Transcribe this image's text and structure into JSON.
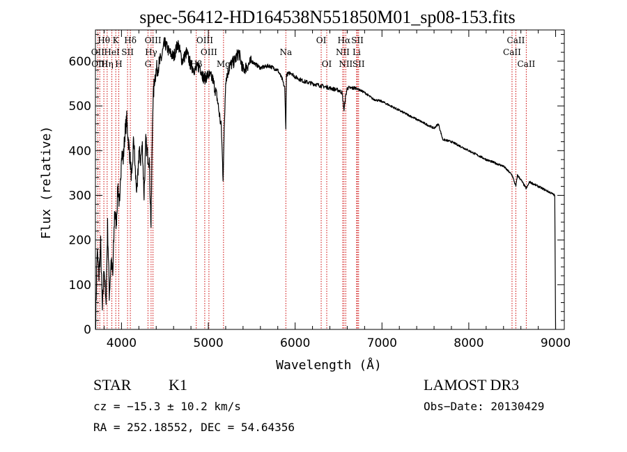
{
  "chart_data": {
    "type": "line",
    "title": "spec-56412-HD164538N551850M01_sp08-153.fits",
    "xlabel": "Wavelength (Å)",
    "ylabel": "Flux (relative)",
    "xlim": [
      3700,
      9100
    ],
    "ylim": [
      0,
      670
    ],
    "x_ticks": [
      4000,
      5000,
      6000,
      7000,
      8000,
      9000
    ],
    "y_ticks": [
      0,
      100,
      200,
      300,
      400,
      500,
      600
    ],
    "series": [
      {
        "name": "flux",
        "x": [
          3700,
          3720,
          3740,
          3760,
          3780,
          3800,
          3820,
          3840,
          3860,
          3880,
          3900,
          3920,
          3940,
          3960,
          3980,
          4000,
          4020,
          4040,
          4060,
          4080,
          4100,
          4120,
          4140,
          4160,
          4180,
          4200,
          4220,
          4240,
          4260,
          4280,
          4300,
          4320,
          4340,
          4360,
          4380,
          4400,
          4450,
          4500,
          4550,
          4600,
          4650,
          4700,
          4750,
          4800,
          4850,
          4900,
          4950,
          5000,
          5050,
          5100,
          5150,
          5170,
          5180,
          5200,
          5250,
          5300,
          5350,
          5400,
          5500,
          5600,
          5700,
          5800,
          5850,
          5880,
          5893,
          5900,
          5950,
          6000,
          6100,
          6200,
          6300,
          6400,
          6500,
          6540,
          6563,
          6580,
          6600,
          6700,
          6800,
          6900,
          7000,
          7200,
          7400,
          7600,
          7650,
          7700,
          7800,
          8000,
          8200,
          8400,
          8500,
          8542,
          8560,
          8600,
          8662,
          8700,
          8800,
          8900,
          8950,
          8990,
          9000
        ],
        "values": [
          0,
          175,
          120,
          190,
          40,
          145,
          50,
          230,
          80,
          150,
          120,
          260,
          240,
          320,
          270,
          400,
          380,
          440,
          470,
          420,
          380,
          330,
          430,
          350,
          300,
          400,
          380,
          410,
          300,
          420,
          390,
          380,
          230,
          500,
          560,
          580,
          600,
          640,
          620,
          610,
          640,
          600,
          620,
          590,
          580,
          590,
          560,
          570,
          560,
          520,
          450,
          340,
          420,
          560,
          590,
          600,
          620,
          580,
          600,
          585,
          590,
          580,
          560,
          540,
          450,
          570,
          575,
          565,
          555,
          550,
          545,
          540,
          535,
          530,
          490,
          520,
          540,
          540,
          530,
          515,
          510,
          490,
          470,
          450,
          460,
          425,
          420,
          400,
          380,
          365,
          345,
          320,
          345,
          335,
          315,
          330,
          320,
          310,
          305,
          300,
          0
        ]
      }
    ],
    "line_labels": [
      {
        "text": "Hθ",
        "x": 3797,
        "row": 1
      },
      {
        "text": "OII",
        "x": 3727,
        "row": 2
      },
      {
        "text": "OIII",
        "x": 3750,
        "row": 3
      },
      {
        "text": "K",
        "x": 3934,
        "row": 1
      },
      {
        "text": "HeI",
        "x": 3889,
        "row": 2
      },
      {
        "text": "Hη",
        "x": 3835,
        "row": 3
      },
      {
        "text": "Hδ",
        "x": 4102,
        "row": 1
      },
      {
        "text": "SII",
        "x": 4070,
        "row": 2
      },
      {
        "text": "H",
        "x": 3969,
        "row": 3
      },
      {
        "text": "OIII",
        "x": 4363,
        "row": 1
      },
      {
        "text": "Hγ",
        "x": 4341,
        "row": 2
      },
      {
        "text": "G",
        "x": 4305,
        "row": 3
      },
      {
        "text": "OIII",
        "x": 4959,
        "row": 1
      },
      {
        "text": "OIII",
        "x": 5007,
        "row": 2
      },
      {
        "text": "Hβ",
        "x": 4861,
        "row": 3
      },
      {
        "text": "Mg",
        "x": 5175,
        "row": 3
      },
      {
        "text": "Na",
        "x": 5893,
        "row": 2
      },
      {
        "text": "OI",
        "x": 6300,
        "row": 1
      },
      {
        "text": "OI",
        "x": 6364,
        "row": 3
      },
      {
        "text": "Hα",
        "x": 6563,
        "row": 1
      },
      {
        "text": "NII",
        "x": 6548,
        "row": 2
      },
      {
        "text": "NII",
        "x": 6583,
        "row": 3
      },
      {
        "text": "SII",
        "x": 6717,
        "row": 1
      },
      {
        "text": "Li",
        "x": 6708,
        "row": 2
      },
      {
        "text": "SII",
        "x": 6731,
        "row": 3
      },
      {
        "text": "CaII",
        "x": 8542,
        "row": 1
      },
      {
        "text": "CaII",
        "x": 8498,
        "row": 2
      },
      {
        "text": "CaII",
        "x": 8662,
        "row": 3
      }
    ]
  },
  "info": {
    "class": "STAR",
    "subclass": "K1",
    "survey": "LAMOST DR3",
    "cz": "cz = −15.3 ± 10.2 km/s",
    "obs_date": "Obs−Date: 20130429",
    "coords": "RA = 252.18552, DEC =  54.64356"
  },
  "colors": {
    "line": "#000000",
    "marker": "#cc0000"
  }
}
